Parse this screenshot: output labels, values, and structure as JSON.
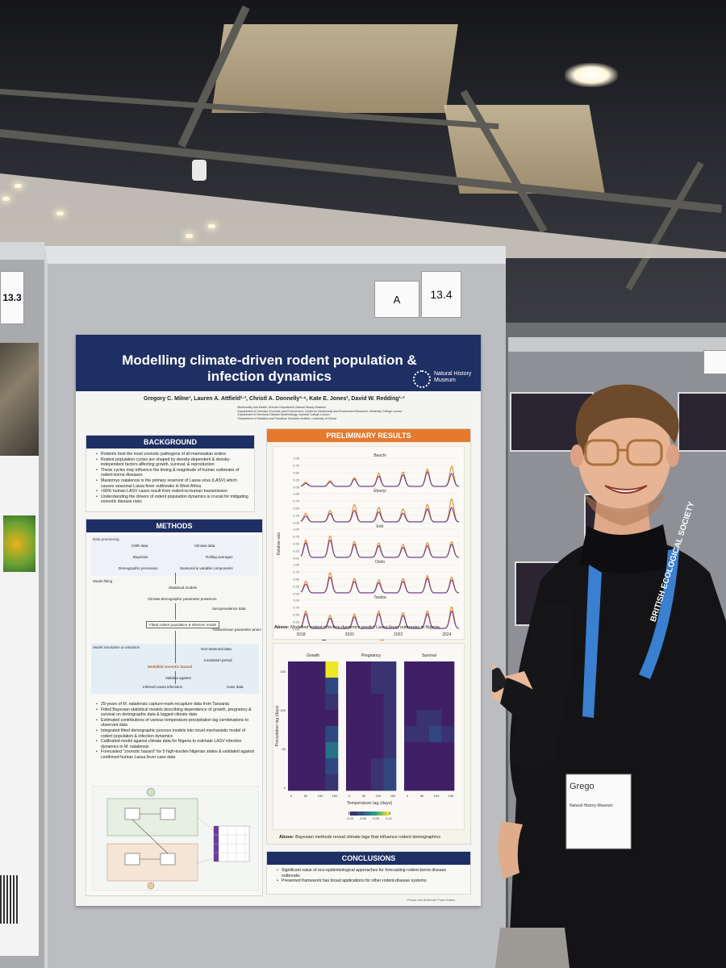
{
  "scene": {
    "board_number": "13.4",
    "board_letter": "A",
    "left_board_number": "13.3"
  },
  "poster": {
    "title": "Modelling climate-driven rodent population & infection dynamics",
    "institution": "Natural History Museum",
    "authors": "Gregory C. Milne¹, Lauren A. Attfield²·³, Christl A. Donnelly³·⁴, Kate E. Jones², David W. Redding¹·²",
    "affiliations": "¹Biodiversity and Health, Science Department, Natural History Museum\n²Department of Genetics, Evolution and Environment, Centre for Biodiversity and Environment Research, University College London\n³Department of Infectious Disease Epidemiology, Imperial College London\n⁴Department of Statistics and Pandemic Sciences Institute, University of Oxford",
    "background": {
      "heading": "BACKGROUND",
      "bullets": [
        "Rodents host the most zoonotic pathogens of all mammalian orders",
        "Rodent population cycles are shaped by density-dependent & density-independent factors affecting growth, survival, & reproduction",
        "These cycles may influence the timing & magnitude of human outbreaks of rodent-borne diseases",
        "Mastomys natalensis is the primary reservoir of Lassa virus (LASV) which causes seasonal Lassa fever outbreaks in West Africa",
        ">90% human LASV cases result from rodent-to-human transmission",
        "Understanding the drivers of rodent population dynamics is crucial for mitigating zoonotic disease risks"
      ]
    },
    "methods": {
      "heading": "METHODS",
      "bands": [
        "Data processing",
        "Model fitting",
        "Model simulation & validation"
      ],
      "nodes": {
        "cmr": "CMR data",
        "climate": "Climate data",
        "bayes": "Bayesian",
        "rolling": "Rolling averages",
        "demo": "Demographic processes",
        "seasonal": "Seasonal & variable components",
        "statistical": "Statistical models",
        "climate_demo": "Climate-demographic parameter posteriors",
        "seroprev": "Seroprevalence data",
        "fit": "Fitted rodent population & infection model",
        "transmission": "Transmission parameter priors",
        "nonseasonal": "Non-seasonal data",
        "incubation": "Incubation period",
        "hazard": "Modelled zoonotic hazard",
        "validate": "Validate against",
        "infections": "Inferred Lassa infections",
        "casedata": "Case data"
      },
      "bullets": [
        "29-years of M. natalensis capture-mark-recapture data from Tanzania",
        "Fitted Bayesian statistical models describing dependence of growth, pregnancy & survival on demographic data & lagged climate data",
        "Estimated contributions of various temperature-precipitation lag combinations to observed data",
        "Integrated fitted demographic process models into novel mechanistic model of rodent population & infection dynamics",
        "Calibrated model against climate data for Nigeria to estimate LASV infection dynamics in M. natalensis",
        "Forecasted \"zoonotic hazard\" for 5 high-burden Nigerian states & validated against confirmed human Lassa fever case data"
      ]
    },
    "results": {
      "heading": "PRELIMINARY RESULTS",
      "caption_lead": "Above:",
      "caption_text": "Modelled rodent infection dynamics predict Lassa fever outbreaks in Nigeria",
      "heat_caption_lead": "Above:",
      "heat_caption_text": "Bayesian methods reveal climate lags that influence rodent demographics"
    },
    "conclusions": {
      "heading": "CONCLUSIONS",
      "bullets": [
        "Significant value of eco-epidemiological approaches for forecasting rodent-borne disease outbreaks",
        "Presented framework has broad applications for other rodent-disease systems"
      ]
    },
    "footer": "©Poster with BioRender Poster Builder"
  },
  "chart_data": [
    {
      "type": "line",
      "ylabel": "Relative size",
      "x_ticks": [
        "2018",
        "2020",
        "2022",
        "2024"
      ],
      "y_ticks": [
        "0.00",
        "0.25",
        "0.50",
        "0.75",
        "1.00"
      ],
      "ylim": [
        0,
        1
      ],
      "facets": [
        "Bauchi",
        "Ebonyi",
        "Edo",
        "Ondo",
        "Taraba"
      ],
      "series": [
        {
          "name": "Inferred cases",
          "color": "#6b3d9a"
        },
        {
          "name": "Modelled zoonotic hazard",
          "color": "#e08a2a"
        }
      ],
      "peak_years": [
        2018.2,
        2019.2,
        2020.2,
        2021.2,
        2022.2,
        2023.2,
        2024.2
      ],
      "hazard_peaks": {
        "Bauchi": [
          0.15,
          0.2,
          0.3,
          0.45,
          0.5,
          0.6,
          0.7
        ],
        "Ebonyi": [
          0.3,
          0.4,
          0.6,
          0.5,
          0.45,
          0.6,
          0.8
        ],
        "Edo": [
          0.6,
          0.75,
          0.55,
          0.5,
          0.45,
          0.5,
          0.55
        ],
        "Ondo": [
          0.4,
          0.7,
          0.5,
          0.45,
          0.5,
          0.6,
          0.55
        ],
        "Taraba": [
          0.6,
          0.45,
          0.5,
          0.6,
          0.55,
          0.6,
          0.75
        ]
      },
      "case_peaks": {
        "Bauchi": [
          0.1,
          0.15,
          0.25,
          0.35,
          0.4,
          0.5,
          0.45
        ],
        "Ebonyi": [
          0.2,
          0.3,
          0.4,
          0.35,
          0.3,
          0.45,
          0.5
        ],
        "Edo": [
          0.5,
          0.6,
          0.45,
          0.4,
          0.35,
          0.4,
          0.45
        ],
        "Ondo": [
          0.3,
          0.55,
          0.4,
          0.35,
          0.4,
          0.5,
          0.45
        ],
        "Taraba": [
          0.5,
          0.35,
          0.4,
          0.5,
          0.45,
          0.5,
          0.6
        ]
      }
    },
    {
      "type": "heatmap",
      "panels": [
        "Growth",
        "Pregnancy",
        "Survival"
      ],
      "xlabel": "Temperature lag (days)",
      "ylabel": "Precipitation lag (days)",
      "x_ticks": [
        "0",
        "50",
        "100",
        "150"
      ],
      "y_ticks": [
        "0",
        "50",
        "100",
        "150"
      ],
      "legend_title": "Median posterior weight",
      "legend_ticks": [
        "0.03",
        "0.06",
        "0.09",
        "0.12"
      ],
      "grid": {
        "Growth": [
          [
            0.03,
            0.03,
            0.03,
            0.12
          ],
          [
            0.03,
            0.03,
            0.03,
            0.05
          ],
          [
            0.03,
            0.03,
            0.03,
            0.04
          ],
          [
            0.03,
            0.03,
            0.03,
            0.03
          ],
          [
            0.03,
            0.03,
            0.03,
            0.05
          ],
          [
            0.03,
            0.03,
            0.03,
            0.07
          ],
          [
            0.03,
            0.03,
            0.03,
            0.05
          ],
          [
            0.03,
            0.03,
            0.03,
            0.04
          ]
        ],
        "Pregnancy": [
          [
            0.03,
            0.03,
            0.04,
            0.04
          ],
          [
            0.03,
            0.03,
            0.04,
            0.04
          ],
          [
            0.03,
            0.03,
            0.03,
            0.04
          ],
          [
            0.03,
            0.03,
            0.03,
            0.04
          ],
          [
            0.03,
            0.03,
            0.03,
            0.04
          ],
          [
            0.03,
            0.03,
            0.03,
            0.04
          ],
          [
            0.03,
            0.03,
            0.04,
            0.05
          ],
          [
            0.03,
            0.03,
            0.04,
            0.05
          ]
        ],
        "Survival": [
          [
            0.03,
            0.03,
            0.03,
            0.03
          ],
          [
            0.03,
            0.03,
            0.03,
            0.03
          ],
          [
            0.03,
            0.03,
            0.03,
            0.03
          ],
          [
            0.03,
            0.04,
            0.04,
            0.03
          ],
          [
            0.04,
            0.04,
            0.05,
            0.04
          ],
          [
            0.03,
            0.03,
            0.03,
            0.03
          ],
          [
            0.03,
            0.03,
            0.03,
            0.03
          ],
          [
            0.03,
            0.03,
            0.03,
            0.03
          ]
        ]
      }
    }
  ],
  "badge": {
    "lanyard_text": "BRITISH ECOLOGICAL SOCIETY",
    "badge_name": "Grego",
    "badge_org": "Natural History Museum"
  }
}
